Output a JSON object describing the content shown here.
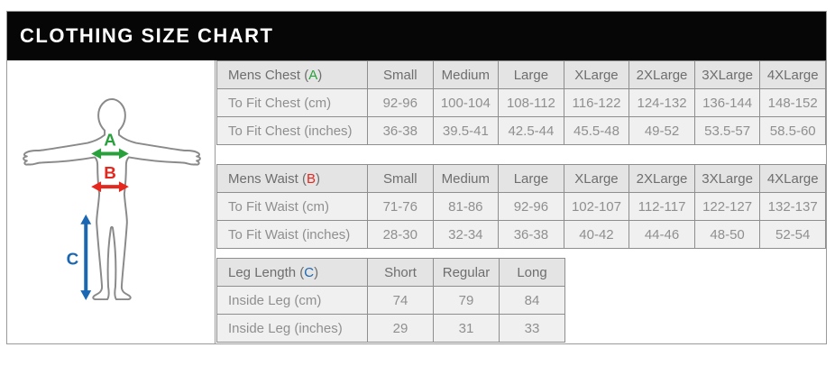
{
  "title": "CLOTHING SIZE CHART",
  "figure": {
    "chest_marker": "A",
    "waist_marker": "B",
    "leg_marker": "C",
    "chest_color": "#28a03c",
    "waist_color": "#e5271d",
    "leg_color": "#1b67b2",
    "outline_color": "#8a8a8a"
  },
  "chart_data": [
    {
      "type": "table",
      "title": "Mens Chest",
      "marker": "A",
      "marker_color": "#28a03c",
      "columns": [
        "Small",
        "Medium",
        "Large",
        "XLarge",
        "2XLarge",
        "3XLarge",
        "4XLarge"
      ],
      "rows": [
        {
          "label": "To Fit Chest (cm)",
          "values": [
            "92-96",
            "100-104",
            "108-112",
            "116-122",
            "124-132",
            "136-144",
            "148-152"
          ]
        },
        {
          "label": "To Fit Chest (inches)",
          "values": [
            "36-38",
            "39.5-41",
            "42.5-44",
            "45.5-48",
            "49-52",
            "53.5-57",
            "58.5-60"
          ]
        }
      ]
    },
    {
      "type": "table",
      "title": "Mens Waist",
      "marker": "B",
      "marker_color": "#e5271d",
      "columns": [
        "Small",
        "Medium",
        "Large",
        "XLarge",
        "2XLarge",
        "3XLarge",
        "4XLarge"
      ],
      "rows": [
        {
          "label": "To Fit Waist (cm)",
          "values": [
            "71-76",
            "81-86",
            "92-96",
            "102-107",
            "112-117",
            "122-127",
            "132-137"
          ]
        },
        {
          "label": "To Fit Waist (inches)",
          "values": [
            "28-30",
            "32-34",
            "36-38",
            "40-42",
            "44-46",
            "48-50",
            "52-54"
          ]
        }
      ]
    },
    {
      "type": "table",
      "title": "Leg Length",
      "marker": "C",
      "marker_color": "#1b67b2",
      "columns": [
        "Short",
        "Regular",
        "Long"
      ],
      "rows": [
        {
          "label": "Inside Leg (cm)",
          "values": [
            "74",
            "79",
            "84"
          ]
        },
        {
          "label": "Inside Leg (inches)",
          "values": [
            "29",
            "31",
            "33"
          ]
        }
      ]
    }
  ]
}
